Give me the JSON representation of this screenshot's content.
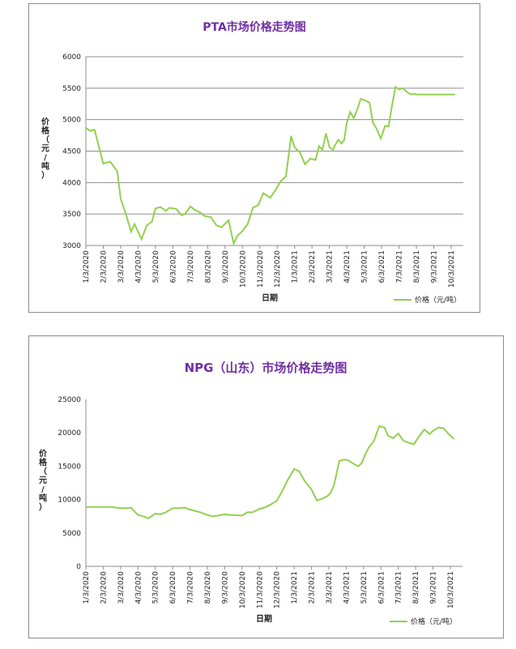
{
  "chart_data": [
    {
      "type": "line",
      "title": "PTA市场价格走势图",
      "xlabel": "日期",
      "ylabel": "价格（元/吨）",
      "ylim": [
        3000,
        6000
      ],
      "yticks": [
        3000,
        3500,
        4000,
        4500,
        5000,
        5500,
        6000
      ],
      "xticks": [
        "1/3/2020",
        "2/3/2020",
        "3/3/2020",
        "4/3/2020",
        "5/3/2020",
        "6/3/2020",
        "7/3/2020",
        "8/3/2020",
        "9/3/2020",
        "10/3/2020",
        "11/3/2020",
        "12/3/2020",
        "1/3/2021",
        "2/3/2021",
        "3/3/2021",
        "4/3/2021",
        "5/3/2021",
        "6/3/2021",
        "7/3/2021",
        "8/3/2021",
        "9/3/2021",
        "10/3/2021"
      ],
      "legend_position": "bottom-right",
      "line_color": "#92d050",
      "series": [
        {
          "name": "价格（元/吨）",
          "x": [
            0,
            0.25,
            0.5,
            1,
            1.4,
            1.8,
            2,
            2.3,
            2.6,
            2.8,
            3.2,
            3.5,
            3.8,
            4,
            4.3,
            4.6,
            4.8,
            5.2,
            5.5,
            5.7,
            6,
            6.3,
            6.6,
            6.8,
            7.2,
            7.5,
            7.8,
            8.2,
            8.5,
            8.7,
            9,
            9.3,
            9.6,
            9.9,
            10.2,
            10.6,
            10.9,
            11.2,
            11.5,
            11.8,
            12,
            12.3,
            12.6,
            12.9,
            13.2,
            13.4,
            13.6,
            13.8,
            14,
            14.2,
            14.3,
            14.5,
            14.7,
            14.85,
            15,
            15.2,
            15.4,
            15.6,
            15.8,
            16.1,
            16.3,
            16.5,
            16.7,
            16.95,
            17.2,
            17.4,
            17.6,
            17.8,
            18,
            18.2,
            18.5,
            18.7,
            18.9,
            19,
            19.3,
            19.6,
            19.8,
            20,
            20.2,
            20.4,
            20.6,
            20.8,
            21,
            21.2,
            21.5,
            21.7,
            21.9
          ],
          "y": [
            4870,
            4820,
            4840,
            4300,
            4330,
            4180,
            3740,
            3500,
            3220,
            3340,
            3100,
            3320,
            3380,
            3590,
            3610,
            3550,
            3600,
            3580,
            3480,
            3500,
            3620,
            3560,
            3520,
            3470,
            3450,
            3320,
            3290,
            3400,
            3030,
            3150,
            3230,
            3340,
            3600,
            3640,
            3830,
            3760,
            3880,
            4020,
            4100,
            4740,
            4560,
            4480,
            4290,
            4380,
            4360,
            4580,
            4520,
            4780,
            4560,
            4520,
            4580,
            4680,
            4620,
            4680,
            4950,
            5120,
            5020,
            5160,
            5330,
            5300,
            5270,
            4950,
            4860,
            4700,
            4900,
            4890,
            5230,
            5520,
            5480,
            5500,
            5430,
            5400,
            5410,
            5400,
            5400,
            5400,
            5400,
            5400,
            5400,
            5400,
            5400,
            5400,
            5400,
            5400,
            5400,
            5400,
            5400
          ]
        }
      ]
    },
    {
      "type": "line",
      "title": "NPG（山东）市场价格走势图",
      "xlabel": "日期",
      "ylabel": "价格（元/吨）",
      "ylim": [
        0,
        25000
      ],
      "yticks": [
        0,
        5000,
        10000,
        15000,
        20000,
        25000
      ],
      "xticks": [
        "1/3/2020",
        "2/3/2020",
        "3/3/2020",
        "4/3/2020",
        "5/3/2020",
        "6/3/2020",
        "7/3/2020",
        "8/3/2020",
        "9/3/2020",
        "10/3/2020",
        "11/3/2020",
        "12/3/2020",
        "1/3/2021",
        "2/3/2021",
        "3/3/2021",
        "4/3/2021",
        "5/3/2021",
        "6/3/2021",
        "7/3/2021",
        "8/3/2021",
        "9/3/2021",
        "10/3/2021"
      ],
      "legend_position": "bottom-right",
      "line_color": "#92d050",
      "series": [
        {
          "name": "价格（元/吨）",
          "x": [
            0,
            0.5,
            1,
            1.5,
            2,
            2.3,
            2.6,
            3,
            3.3,
            3.6,
            4,
            4.3,
            4.6,
            5,
            5.3,
            5.7,
            6,
            6.3,
            6.6,
            7,
            7.3,
            7.6,
            8,
            8.3,
            8.6,
            9,
            9.3,
            9.6,
            10,
            10.3,
            10.6,
            11,
            11.3,
            11.6,
            12,
            12.3,
            12.6,
            13,
            13.3,
            13.6,
            13.9,
            14.1,
            14.3,
            14.6,
            14.9,
            15.1,
            15.4,
            15.7,
            15.9,
            16.1,
            16.3,
            16.6,
            16.9,
            17.2,
            17.4,
            17.7,
            18,
            18.3,
            18.6,
            18.9,
            19.2,
            19.5,
            19.8,
            20,
            20.3,
            20.6,
            20.9,
            21.2,
            21.4
          ],
          "y": [
            8900,
            8900,
            8900,
            8900,
            8700,
            8700,
            8800,
            7700,
            7500,
            7200,
            7900,
            7800,
            8100,
            8700,
            8700,
            8800,
            8500,
            8300,
            8100,
            7700,
            7500,
            7600,
            7800,
            7700,
            7700,
            7600,
            8100,
            8100,
            8600,
            8800,
            9200,
            9800,
            11200,
            12800,
            14600,
            14200,
            12800,
            11500,
            9900,
            10100,
            10500,
            11000,
            12200,
            15800,
            16000,
            15900,
            15400,
            15000,
            15500,
            16800,
            17800,
            18800,
            21000,
            20800,
            19600,
            19200,
            19900,
            18800,
            18500,
            18300,
            19500,
            20500,
            19800,
            20300,
            20800,
            20700,
            19800,
            19100,
            18700
          ]
        }
      ]
    }
  ]
}
